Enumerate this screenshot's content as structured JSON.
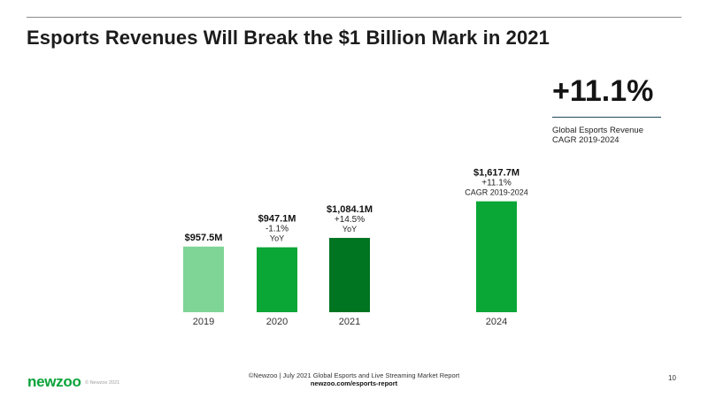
{
  "title": "Esports Revenues Will Break the $1 Billion Mark in 2021",
  "colors": {
    "bar_2019": "#7ed596",
    "bar_2020": "#0aa636",
    "bar_2021": "#007521",
    "bar_2024": "#0aa636",
    "accent": "#0aa339"
  },
  "chart_data": {
    "type": "bar",
    "title": "Esports Revenues Will Break the $1 Billion Mark in 2021",
    "categories": [
      "2019",
      "2020",
      "2021",
      "2024"
    ],
    "values": [
      957.5,
      947.1,
      1084.1,
      1617.7
    ],
    "unit": "$M",
    "ylim": [
      0,
      1900
    ],
    "grid": false,
    "legend": "none",
    "value_labels": [
      "$957.5M",
      "$947.1M",
      "$1,084.1M",
      "$1,617.7M"
    ],
    "change_labels": [
      "",
      "-1.1%",
      "+14.5%",
      "+11.1%"
    ],
    "sub_labels": [
      "",
      "YoY",
      "YoY",
      "CAGR 2019-2024"
    ]
  },
  "kpi": {
    "value": "+11.1%",
    "desc_line1": "Global Esports Revenue",
    "desc_line2": "CAGR 2019-2024"
  },
  "footer": {
    "logo": "newzoo",
    "copyright": "© Newzoo 2021",
    "source": "©Newzoo | July 2021 Global Esports and Live Streaming Market Report",
    "source_url": "newzoo.com/esports-report",
    "page_number": "10"
  }
}
